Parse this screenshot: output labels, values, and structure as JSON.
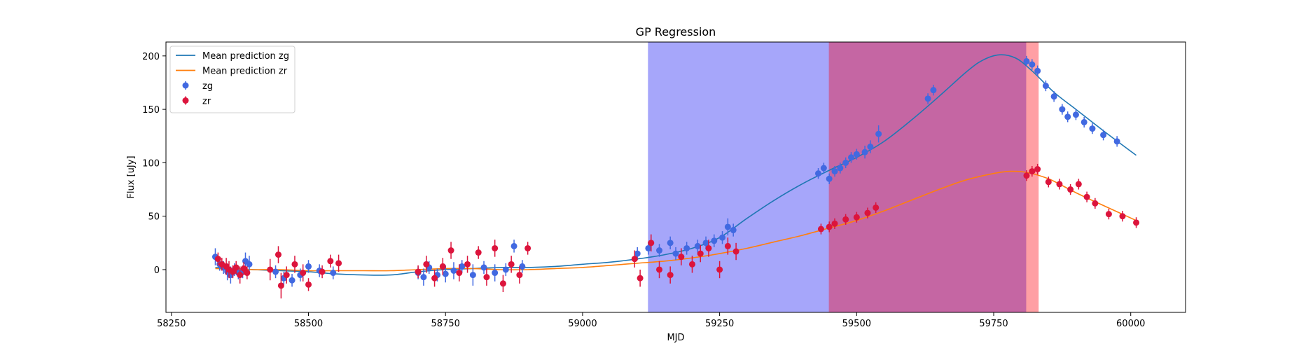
{
  "chart_data": {
    "type": "scatter",
    "title": "GP Regression",
    "xlabel": "MJD",
    "ylabel": "Flux [uJy]",
    "xlim": [
      58240,
      60100
    ],
    "ylim": [
      -40,
      213
    ],
    "xticks": [
      58250,
      58500,
      58750,
      59000,
      59250,
      59500,
      59750,
      60000
    ],
    "yticks": [
      0,
      50,
      100,
      150,
      200
    ],
    "grid": false,
    "legend_placement": "top-left",
    "shaded_regions": [
      {
        "x": [
          59120,
          59450
        ],
        "color": "#a6a6fa"
      },
      {
        "x": [
          59450,
          59810
        ],
        "color": "#c566a3"
      },
      {
        "x": [
          59810,
          59832
        ],
        "color": "#ff9fa4"
      }
    ],
    "series": [
      {
        "name": "Mean prediction zg",
        "kind": "line",
        "color": "#1f77b4",
        "x": [
          58330,
          58400,
          58450,
          58500,
          58550,
          58600,
          58650,
          58700,
          58750,
          58800,
          58850,
          58900,
          58950,
          59000,
          59050,
          59100,
          59150,
          59200,
          59250,
          59300,
          59350,
          59400,
          59450,
          59500,
          59550,
          59600,
          59650,
          59700,
          59730,
          59760,
          59790,
          59820,
          59860,
          59900,
          59950,
          60010
        ],
        "y": [
          2,
          0,
          -1,
          -2,
          -4,
          -5,
          -5,
          -2,
          0,
          1,
          2,
          2,
          3,
          5,
          7,
          10,
          14,
          20,
          30,
          48,
          65,
          80,
          93,
          105,
          120,
          140,
          162,
          185,
          196,
          201,
          198,
          186,
          166,
          150,
          130,
          107
        ]
      },
      {
        "name": "Mean prediction zr",
        "kind": "line",
        "color": "#ff7f0e",
        "x": [
          58330,
          58400,
          58450,
          58500,
          58550,
          58600,
          58650,
          58700,
          58750,
          58800,
          58850,
          58900,
          58950,
          59000,
          59050,
          59100,
          59150,
          59200,
          59250,
          59300,
          59350,
          59400,
          59450,
          59500,
          59550,
          59600,
          59650,
          59700,
          59750,
          59780,
          59810,
          59850,
          59900,
          59950,
          60010
        ],
        "y": [
          1,
          0,
          0,
          -1,
          -1,
          -1,
          -1,
          0,
          1,
          1,
          0,
          0,
          1,
          2,
          4,
          6,
          8,
          11,
          15,
          20,
          26,
          32,
          39,
          46,
          55,
          65,
          75,
          84,
          90,
          92,
          91,
          85,
          72,
          60,
          46
        ]
      },
      {
        "name": "zg",
        "kind": "errorbar",
        "color": "#4169e1",
        "x": [
          58330,
          58338,
          58345,
          58352,
          58358,
          58365,
          58372,
          58380,
          58385,
          58392,
          58440,
          58455,
          58470,
          58485,
          58500,
          58520,
          58545,
          58700,
          58710,
          58720,
          58735,
          58750,
          58765,
          58780,
          58800,
          58820,
          58840,
          58860,
          58875,
          58890,
          59100,
          59120,
          59140,
          59160,
          59170,
          59190,
          59210,
          59225,
          59240,
          59255,
          59265,
          59275,
          59430,
          59440,
          59450,
          59460,
          59470,
          59480,
          59490,
          59500,
          59515,
          59525,
          59540,
          59630,
          59640,
          59810,
          59820,
          59830,
          59845,
          59860,
          59875,
          59885,
          59900,
          59915,
          59930,
          59950,
          59975
        ],
        "y": [
          12,
          5,
          2,
          -2,
          -5,
          0,
          -3,
          -2,
          8,
          5,
          -2,
          -8,
          -10,
          -5,
          3,
          -1,
          -3,
          -3,
          -7,
          2,
          -5,
          -4,
          -1,
          3,
          -5,
          2,
          -3,
          0,
          22,
          3,
          15,
          20,
          18,
          25,
          15,
          20,
          22,
          25,
          27,
          30,
          40,
          37,
          90,
          95,
          85,
          92,
          95,
          100,
          105,
          108,
          110,
          115,
          127,
          160,
          168,
          195,
          192,
          186,
          172,
          162,
          150,
          143,
          145,
          138,
          132,
          126,
          120
        ],
        "err": [
          8,
          6,
          6,
          8,
          8,
          6,
          6,
          6,
          8,
          8,
          6,
          6,
          6,
          6,
          6,
          6,
          6,
          6,
          8,
          6,
          6,
          8,
          8,
          6,
          10,
          6,
          8,
          6,
          6,
          6,
          6,
          6,
          6,
          6,
          6,
          6,
          6,
          6,
          6,
          6,
          8,
          6,
          5,
          5,
          5,
          5,
          5,
          5,
          5,
          5,
          6,
          6,
          8,
          5,
          5,
          5,
          5,
          5,
          5,
          5,
          5,
          5,
          5,
          5,
          5,
          5,
          5
        ]
      },
      {
        "name": "zr",
        "kind": "errorbar",
        "color": "#dc143c",
        "x": [
          58335,
          58342,
          58350,
          58355,
          58362,
          58368,
          58375,
          58382,
          58388,
          58430,
          58445,
          58450,
          58460,
          58475,
          58490,
          58500,
          58525,
          58540,
          58555,
          58700,
          58715,
          58730,
          58745,
          58760,
          58775,
          58790,
          58810,
          58825,
          58840,
          58855,
          58870,
          58885,
          58900,
          59095,
          59105,
          59125,
          59140,
          59160,
          59180,
          59200,
          59215,
          59230,
          59250,
          59265,
          59280,
          59435,
          59450,
          59460,
          59480,
          59500,
          59520,
          59535,
          59810,
          59820,
          59830,
          59850,
          59870,
          59890,
          59905,
          59920,
          59935,
          59960,
          59985,
          60010
        ],
        "y": [
          10,
          5,
          3,
          0,
          -2,
          2,
          -5,
          1,
          -3,
          0,
          14,
          -15,
          -5,
          5,
          -3,
          -14,
          -2,
          8,
          6,
          -2,
          5,
          -8,
          3,
          18,
          -3,
          5,
          16,
          -7,
          20,
          -13,
          5,
          -5,
          20,
          10,
          -8,
          25,
          0,
          -5,
          12,
          5,
          15,
          20,
          0,
          22,
          17,
          38,
          40,
          43,
          47,
          49,
          53,
          58,
          88,
          92,
          94,
          82,
          80,
          75,
          80,
          68,
          62,
          52,
          50,
          44
        ],
        "err": [
          6,
          6,
          8,
          8,
          6,
          6,
          8,
          6,
          6,
          10,
          8,
          12,
          8,
          8,
          8,
          6,
          6,
          6,
          8,
          6,
          8,
          8,
          8,
          8,
          8,
          8,
          6,
          8,
          8,
          8,
          8,
          8,
          6,
          8,
          8,
          8,
          8,
          8,
          8,
          8,
          8,
          8,
          8,
          8,
          8,
          5,
          5,
          5,
          5,
          5,
          5,
          5,
          5,
          5,
          5,
          5,
          5,
          5,
          5,
          5,
          5,
          5,
          5,
          5
        ]
      }
    ]
  }
}
